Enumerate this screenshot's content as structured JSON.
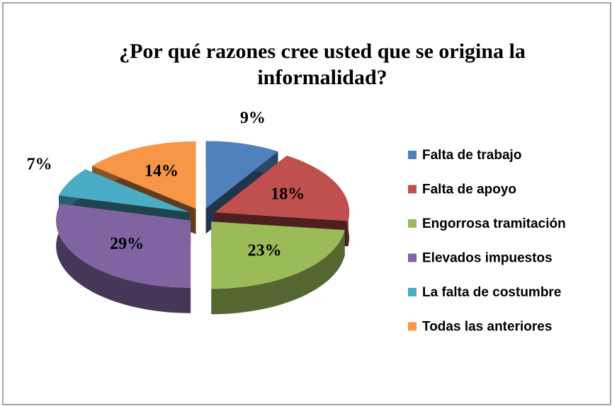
{
  "chart_data": {
    "type": "pie3d",
    "title": "¿Por qué razones cree usted que se origina la informalidad?",
    "categories": [
      "Falta de trabajo",
      "Falta de apoyo",
      "Engorrosa tramitación",
      "Elevados impuestos",
      "La  falta de costumbre",
      "Todas las anteriores"
    ],
    "values": [
      9,
      18,
      23,
      29,
      7,
      14
    ],
    "value_labels": [
      "9%",
      "18%",
      "23%",
      "29%",
      "7%",
      "14%"
    ],
    "colors": [
      "#4f81bd",
      "#c0504d",
      "#9bbb59",
      "#8064a2",
      "#4bacc6",
      "#f79646"
    ],
    "legend": "right"
  }
}
